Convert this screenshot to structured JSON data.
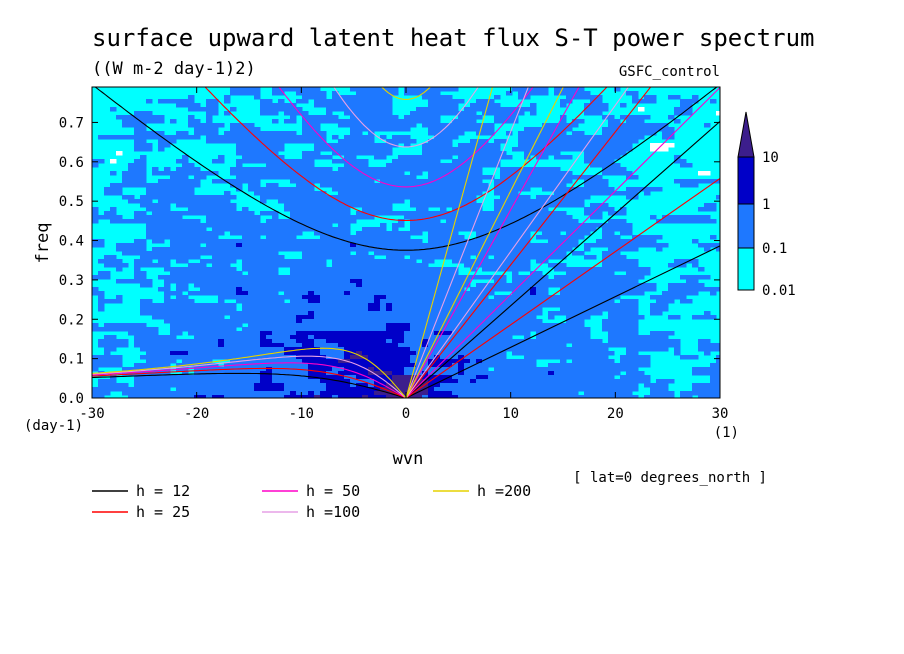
{
  "chart_data": {
    "type": "heatmap",
    "title": "surface upward latent heat flux S-T power spectrum",
    "subtitle": "((W m-2 day-1)2)",
    "experiment": "GSFC_control",
    "xlabel": "wvn",
    "ylabel": "freq",
    "x_unit": "(1)",
    "y_unit": "(day-1)",
    "annotation": "[ lat=0 degrees_north ]",
    "xlim": [
      -30,
      30
    ],
    "ylim": [
      0,
      0.79
    ],
    "x_ticks": [
      -30,
      -20,
      -10,
      0,
      10,
      20,
      30
    ],
    "y_ticks": [
      0.0,
      0.1,
      0.2,
      0.3,
      0.4,
      0.5,
      0.6,
      0.7
    ],
    "x_tick_labels": [
      "-30",
      "-20",
      "-10",
      "0",
      "10",
      "20",
      "30"
    ],
    "y_tick_labels": [
      "0.0",
      "0.1",
      "0.2",
      "0.3",
      "0.4",
      "0.5",
      "0.6",
      "0.7"
    ],
    "colorbar": {
      "levels": [
        "0.01",
        "0.1",
        "1",
        "10"
      ],
      "colors": [
        "#00ffff",
        "#1e78ff",
        "#0000c8",
        "#3c1e8c"
      ]
    },
    "dispersion_curves": [
      {
        "label": "h = 12",
        "h": 12,
        "color": "#000000"
      },
      {
        "label": "h = 25",
        "h": 25,
        "color": "#ff0000"
      },
      {
        "label": "h = 50",
        "h": 50,
        "color": "#ff00c8"
      },
      {
        "label": "h =100",
        "h": 100,
        "color": "#e6a0e6"
      },
      {
        "label": "h =200",
        "h": 200,
        "color": "#e6d200"
      }
    ]
  }
}
